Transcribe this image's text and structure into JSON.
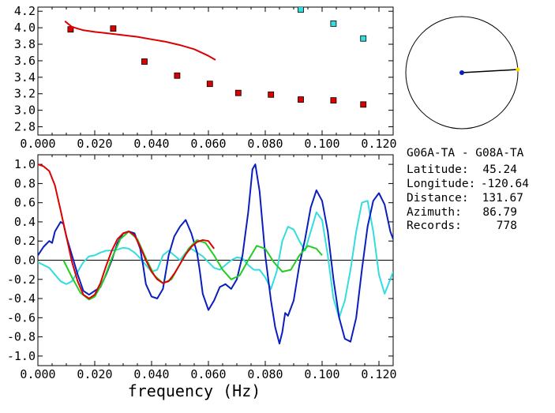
{
  "colors": {
    "background": "#ffffff",
    "axes": "#000000",
    "red": "#dd0000",
    "blue": "#0a1ebe",
    "cyan": "#33dddd",
    "green": "#22cc22",
    "circle_dot": "#0a1ebe",
    "circle_end": "#ffdd00"
  },
  "info": {
    "station_pair": "G06A-TA - G08A-TA",
    "rows": [
      {
        "label": "Latitude:",
        "value": "45.24"
      },
      {
        "label": "Longitude:",
        "value": "-120.64"
      },
      {
        "label": "Distance:",
        "value": "131.67"
      },
      {
        "label": "Azimuth:",
        "value": "86.79"
      },
      {
        "label": "Records:",
        "value": "778"
      }
    ]
  },
  "azimuth_plot": {
    "azimuth_deg": 86.79
  },
  "chart_data": [
    {
      "type": "scatter",
      "title": "",
      "xlabel": "",
      "ylabel": "",
      "xlim": [
        0.0,
        0.125
      ],
      "ylim": [
        2.7,
        4.25
      ],
      "xticks": [
        "0.000",
        "0.020",
        "0.040",
        "0.060",
        "0.080",
        "0.100",
        "0.120"
      ],
      "yticks": [
        "2.8",
        "3.0",
        "3.2",
        "3.4",
        "3.6",
        "3.8",
        "4.0",
        "4.2"
      ],
      "grid": false,
      "series": [
        {
          "kind": "scatter",
          "color_key": "red",
          "points": [
            [
              0.0115,
              3.98
            ],
            [
              0.0265,
              3.99
            ],
            [
              0.0375,
              3.59
            ],
            [
              0.049,
              3.42
            ],
            [
              0.0605,
              3.32
            ],
            [
              0.0705,
              3.21
            ],
            [
              0.082,
              3.19
            ],
            [
              0.0925,
              3.13
            ],
            [
              0.104,
              3.12
            ],
            [
              0.1145,
              3.07
            ]
          ]
        },
        {
          "kind": "scatter",
          "color_key": "cyan",
          "points": [
            [
              0.0925,
              4.22
            ],
            [
              0.104,
              4.05
            ],
            [
              0.1145,
              3.87
            ]
          ]
        },
        {
          "kind": "line",
          "color_key": "red",
          "points": [
            [
              0.0095,
              4.08
            ],
            [
              0.012,
              4.01
            ],
            [
              0.016,
              3.97
            ],
            [
              0.02,
              3.95
            ],
            [
              0.025,
              3.93
            ],
            [
              0.03,
              3.91
            ],
            [
              0.035,
              3.89
            ],
            [
              0.04,
              3.86
            ],
            [
              0.045,
              3.83
            ],
            [
              0.05,
              3.79
            ],
            [
              0.055,
              3.74
            ],
            [
              0.06,
              3.66
            ],
            [
              0.0625,
              3.61
            ]
          ]
        }
      ]
    },
    {
      "type": "line",
      "title": "",
      "xlabel": "frequency (Hz)",
      "ylabel": "",
      "xlim": [
        0.0,
        0.125
      ],
      "ylim": [
        -1.1,
        1.1
      ],
      "xticks": [
        "0.000",
        "0.020",
        "0.040",
        "0.060",
        "0.080",
        "0.100",
        "0.120"
      ],
      "yticks": [
        "1.0",
        "0.8",
        "0.6",
        "0.4",
        "0.2",
        "0.0",
        "-0.2",
        "-0.4",
        "-0.6",
        "-0.8",
        "-1.0"
      ],
      "zero_line": true,
      "grid": false,
      "series": [
        {
          "color_key": "cyan",
          "points": [
            [
              0.0,
              -0.02
            ],
            [
              0.002,
              -0.05
            ],
            [
              0.004,
              -0.08
            ],
            [
              0.006,
              -0.15
            ],
            [
              0.008,
              -0.22
            ],
            [
              0.01,
              -0.25
            ],
            [
              0.012,
              -0.22
            ],
            [
              0.014,
              -0.12
            ],
            [
              0.016,
              -0.02
            ],
            [
              0.018,
              0.04
            ],
            [
              0.02,
              0.05
            ],
            [
              0.022,
              0.08
            ],
            [
              0.024,
              0.1
            ],
            [
              0.026,
              0.1
            ],
            [
              0.028,
              0.11
            ],
            [
              0.03,
              0.13
            ],
            [
              0.032,
              0.12
            ],
            [
              0.034,
              0.08
            ],
            [
              0.036,
              0.02
            ],
            [
              0.038,
              -0.05
            ],
            [
              0.04,
              -0.12
            ],
            [
              0.042,
              -0.1
            ],
            [
              0.044,
              0.05
            ],
            [
              0.046,
              0.1
            ],
            [
              0.048,
              0.05
            ],
            [
              0.05,
              0.0
            ],
            [
              0.052,
              0.08
            ],
            [
              0.054,
              0.12
            ],
            [
              0.056,
              0.08
            ],
            [
              0.058,
              0.04
            ],
            [
              0.06,
              -0.02
            ],
            [
              0.062,
              -0.08
            ],
            [
              0.064,
              -0.1
            ],
            [
              0.066,
              -0.05
            ],
            [
              0.068,
              0.0
            ],
            [
              0.07,
              0.03
            ],
            [
              0.072,
              0.02
            ],
            [
              0.074,
              -0.05
            ],
            [
              0.076,
              -0.1
            ],
            [
              0.078,
              -0.1
            ],
            [
              0.08,
              -0.18
            ],
            [
              0.082,
              -0.3
            ],
            [
              0.084,
              -0.12
            ],
            [
              0.086,
              0.2
            ],
            [
              0.088,
              0.35
            ],
            [
              0.09,
              0.32
            ],
            [
              0.092,
              0.2
            ],
            [
              0.094,
              0.1
            ],
            [
              0.096,
              0.3
            ],
            [
              0.098,
              0.5
            ],
            [
              0.1,
              0.42
            ],
            [
              0.102,
              0.05
            ],
            [
              0.104,
              -0.4
            ],
            [
              0.106,
              -0.6
            ],
            [
              0.108,
              -0.42
            ],
            [
              0.11,
              -0.1
            ],
            [
              0.112,
              0.3
            ],
            [
              0.114,
              0.6
            ],
            [
              0.116,
              0.62
            ],
            [
              0.118,
              0.3
            ],
            [
              0.12,
              -0.15
            ],
            [
              0.122,
              -0.35
            ],
            [
              0.124,
              -0.2
            ],
            [
              0.125,
              -0.12
            ]
          ]
        },
        {
          "color_key": "blue",
          "points": [
            [
              0.0,
              0.05
            ],
            [
              0.002,
              0.14
            ],
            [
              0.004,
              0.2
            ],
            [
              0.005,
              0.18
            ],
            [
              0.006,
              0.3
            ],
            [
              0.008,
              0.4
            ],
            [
              0.009,
              0.38
            ],
            [
              0.01,
              0.25
            ],
            [
              0.012,
              0.05
            ],
            [
              0.014,
              -0.15
            ],
            [
              0.016,
              -0.32
            ],
            [
              0.018,
              -0.36
            ],
            [
              0.02,
              -0.32
            ],
            [
              0.022,
              -0.28
            ],
            [
              0.024,
              -0.15
            ],
            [
              0.026,
              0.0
            ],
            [
              0.028,
              0.18
            ],
            [
              0.03,
              0.28
            ],
            [
              0.032,
              0.3
            ],
            [
              0.034,
              0.28
            ],
            [
              0.036,
              0.12
            ],
            [
              0.037,
              -0.05
            ],
            [
              0.038,
              -0.25
            ],
            [
              0.04,
              -0.38
            ],
            [
              0.042,
              -0.4
            ],
            [
              0.044,
              -0.3
            ],
            [
              0.046,
              0.05
            ],
            [
              0.048,
              0.25
            ],
            [
              0.05,
              0.35
            ],
            [
              0.052,
              0.42
            ],
            [
              0.054,
              0.28
            ],
            [
              0.056,
              0.08
            ],
            [
              0.057,
              -0.12
            ],
            [
              0.058,
              -0.35
            ],
            [
              0.06,
              -0.52
            ],
            [
              0.062,
              -0.42
            ],
            [
              0.064,
              -0.28
            ],
            [
              0.066,
              -0.25
            ],
            [
              0.068,
              -0.3
            ],
            [
              0.07,
              -0.2
            ],
            [
              0.072,
              0.05
            ],
            [
              0.074,
              0.5
            ],
            [
              0.0755,
              0.95
            ],
            [
              0.0765,
              1.0
            ],
            [
              0.078,
              0.72
            ],
            [
              0.08,
              0.05
            ],
            [
              0.082,
              -0.42
            ],
            [
              0.0835,
              -0.7
            ],
            [
              0.085,
              -0.87
            ],
            [
              0.086,
              -0.75
            ],
            [
              0.087,
              -0.55
            ],
            [
              0.088,
              -0.58
            ],
            [
              0.09,
              -0.42
            ],
            [
              0.092,
              -0.05
            ],
            [
              0.094,
              0.22
            ],
            [
              0.096,
              0.55
            ],
            [
              0.098,
              0.73
            ],
            [
              0.1,
              0.62
            ],
            [
              0.102,
              0.3
            ],
            [
              0.104,
              -0.2
            ],
            [
              0.106,
              -0.6
            ],
            [
              0.108,
              -0.82
            ],
            [
              0.11,
              -0.85
            ],
            [
              0.112,
              -0.6
            ],
            [
              0.114,
              -0.1
            ],
            [
              0.116,
              0.35
            ],
            [
              0.118,
              0.62
            ],
            [
              0.12,
              0.7
            ],
            [
              0.122,
              0.58
            ],
            [
              0.124,
              0.3
            ],
            [
              0.125,
              0.22
            ]
          ]
        },
        {
          "color_key": "green",
          "points": [
            [
              0.009,
              0.0
            ],
            [
              0.012,
              -0.18
            ],
            [
              0.015,
              -0.34
            ],
            [
              0.018,
              -0.41
            ],
            [
              0.02,
              -0.38
            ],
            [
              0.023,
              -0.22
            ],
            [
              0.026,
              0.02
            ],
            [
              0.029,
              0.22
            ],
            [
              0.032,
              0.3
            ],
            [
              0.035,
              0.22
            ],
            [
              0.038,
              0.02
            ],
            [
              0.041,
              -0.16
            ],
            [
              0.044,
              -0.24
            ],
            [
              0.047,
              -0.2
            ],
            [
              0.05,
              -0.04
            ],
            [
              0.053,
              0.12
            ],
            [
              0.056,
              0.21
            ],
            [
              0.059,
              0.18
            ],
            [
              0.062,
              0.05
            ],
            [
              0.065,
              -0.1
            ],
            [
              0.068,
              -0.2
            ],
            [
              0.071,
              -0.16
            ],
            [
              0.074,
              0.0
            ],
            [
              0.077,
              0.15
            ],
            [
              0.08,
              0.12
            ],
            [
              0.083,
              -0.02
            ],
            [
              0.086,
              -0.12
            ],
            [
              0.089,
              -0.1
            ],
            [
              0.092,
              0.05
            ],
            [
              0.095,
              0.15
            ],
            [
              0.098,
              0.12
            ],
            [
              0.1,
              0.05
            ]
          ]
        },
        {
          "color_key": "red",
          "points": [
            [
              0.0,
              1.0
            ],
            [
              0.002,
              0.98
            ],
            [
              0.004,
              0.93
            ],
            [
              0.006,
              0.78
            ],
            [
              0.008,
              0.52
            ],
            [
              0.01,
              0.25
            ],
            [
              0.012,
              -0.02
            ],
            [
              0.014,
              -0.22
            ],
            [
              0.016,
              -0.36
            ],
            [
              0.018,
              -0.4
            ],
            [
              0.02,
              -0.36
            ],
            [
              0.022,
              -0.24
            ],
            [
              0.024,
              -0.06
            ],
            [
              0.026,
              0.1
            ],
            [
              0.028,
              0.22
            ],
            [
              0.03,
              0.28
            ],
            [
              0.032,
              0.3
            ],
            [
              0.034,
              0.26
            ],
            [
              0.036,
              0.14
            ],
            [
              0.038,
              0.0
            ],
            [
              0.04,
              -0.12
            ],
            [
              0.042,
              -0.2
            ],
            [
              0.044,
              -0.24
            ],
            [
              0.046,
              -0.22
            ],
            [
              0.048,
              -0.14
            ],
            [
              0.05,
              -0.04
            ],
            [
              0.052,
              0.06
            ],
            [
              0.054,
              0.14
            ],
            [
              0.056,
              0.19
            ],
            [
              0.058,
              0.21
            ],
            [
              0.06,
              0.2
            ],
            [
              0.062,
              0.12
            ]
          ]
        }
      ]
    }
  ]
}
